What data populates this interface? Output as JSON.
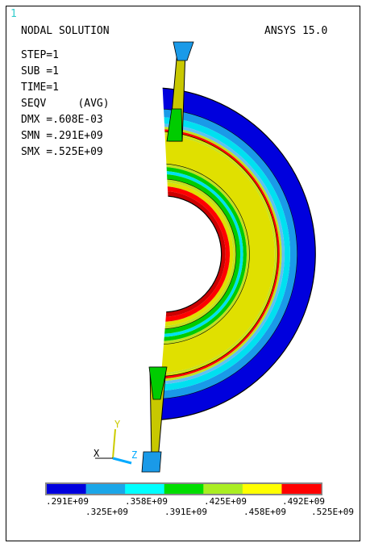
{
  "window_number": "1",
  "header": {
    "left": "NODAL SOLUTION",
    "right": "ANSYS 15.0"
  },
  "info": [
    "STEP=1",
    "SUB =1",
    "TIME=1",
    "SEQV     (AVG)",
    "DMX =.608E-03",
    "SMN =.291E+09",
    "SMX =.525E+09"
  ],
  "triad": {
    "x": "X",
    "y": "Y",
    "z": "Z"
  },
  "legend": {
    "colors": [
      "#0000dd",
      "#1aa6e8",
      "#00ffff",
      "#00dd00",
      "#aaee22",
      "#ffff00",
      "#ff0000"
    ],
    "labels_top": [
      ".291E+09",
      ".358E+09",
      ".425E+09",
      ".492E+09"
    ],
    "labels_bottom": [
      ".325E+09",
      ".391E+09",
      ".458E+09",
      ".525E+09"
    ]
  },
  "model_colors": {
    "outer_blue": "#0000dd",
    "mid_blue": "#1a9ae8",
    "cyan": "#00e0f0",
    "light_blue": "#60c0f0",
    "green": "#00cc00",
    "yellow_green": "#c0e020",
    "yellow": "#e0e000",
    "red": "#ff0000",
    "dark_red": "#cc0000"
  }
}
